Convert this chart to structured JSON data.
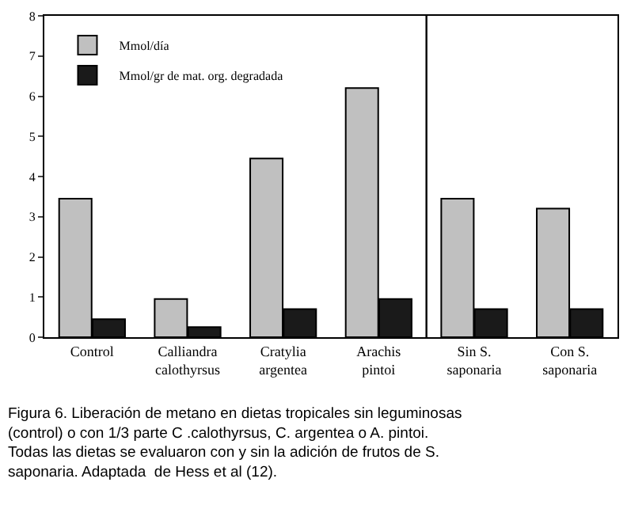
{
  "chart_data": {
    "type": "bar",
    "categories": [
      "Control",
      "Calliandra\ncalothyrsus",
      "Cratylia\nargentea",
      "Arachis\npintoi",
      "Sin S.\nsaponaria",
      "Con S.\nsaponaria"
    ],
    "series": [
      {
        "name": "Mmol/día",
        "color": "#c0c0c0",
        "values": [
          3.45,
          0.95,
          4.45,
          6.2,
          3.45,
          3.2
        ]
      },
      {
        "name": "Mmol/gr de mat. org. degradada",
        "color": "#1a1a1a",
        "values": [
          0.45,
          0.25,
          0.7,
          0.95,
          0.7,
          0.7
        ]
      }
    ],
    "ylim": [
      0,
      8
    ],
    "yticks": [
      0,
      1,
      2,
      3,
      4,
      5,
      6,
      7,
      8
    ],
    "legend": "top left",
    "annotations": [
      "Figura 6. Liberación de metano en dietas tropicales sin leguminosas\n(control) o con 1/3 parte C .calothyrsus, C. argentea o A. pintoi.\nTodas las dietas se evaluaron con y sin la adición de frutos de S.\nsaponaria. Adaptada  de Hess et al (12)."
    ]
  }
}
